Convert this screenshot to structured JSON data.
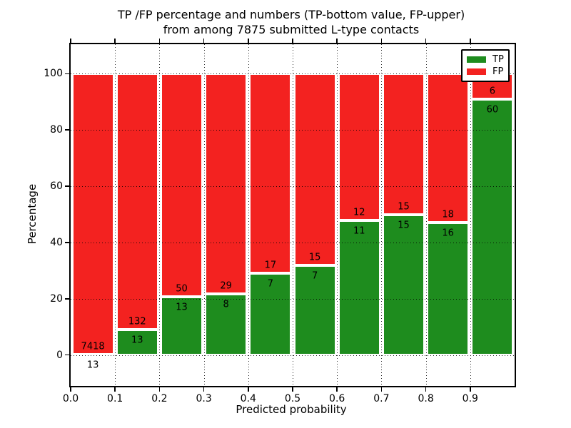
{
  "title": {
    "line1": "TP /FP percentage and numbers (TP-bottom value, FP-upper)",
    "line2": "from among 7875 submitted L-type contacts"
  },
  "colors": {
    "tp_green": "#1e8c1e",
    "fp_red": "#f32220",
    "grid": "#000000",
    "background": "#ffffff",
    "text": "#000000"
  },
  "legend": {
    "items": [
      {
        "label": "TP",
        "color_key": "tp_green"
      },
      {
        "label": "FP",
        "color_key": "fp_red"
      }
    ],
    "position": "upper right"
  },
  "chart_data": {
    "type": "bar",
    "stacked": true,
    "normalized": "each bin stacked to 100%",
    "title": "TP /FP percentage and numbers (TP-bottom value, FP-upper) from among 7875 submitted L-type contacts",
    "xlabel": "Predicted probability",
    "ylabel": "Percentage",
    "total_contacts": 7875,
    "bins": {
      "start": 0.0,
      "width": 0.1,
      "count": 10
    },
    "xtick_labels": [
      "0.0",
      "0.1",
      "0.2",
      "0.3",
      "0.4",
      "0.5",
      "0.6",
      "0.7",
      "0.8",
      "0.9"
    ],
    "ytick_values": [
      0,
      20,
      40,
      60,
      80,
      100
    ],
    "xlim": [
      0.0,
      1.0
    ],
    "ylim": [
      -11.0,
      110.5
    ],
    "grid": true,
    "legend_position": "upper right",
    "series": [
      {
        "name": "TP",
        "color": "#1e8c1e",
        "counts": [
          13,
          13,
          13,
          8,
          7,
          7,
          11,
          15,
          16,
          60
        ]
      },
      {
        "name": "FP",
        "color": "#f32220",
        "counts": [
          7418,
          132,
          50,
          29,
          17,
          15,
          12,
          15,
          18,
          6
        ]
      }
    ],
    "tp_percent_per_bin": [
      0.17,
      8.97,
      20.63,
      21.62,
      29.17,
      31.82,
      47.83,
      50.0,
      47.06,
      90.91
    ]
  }
}
